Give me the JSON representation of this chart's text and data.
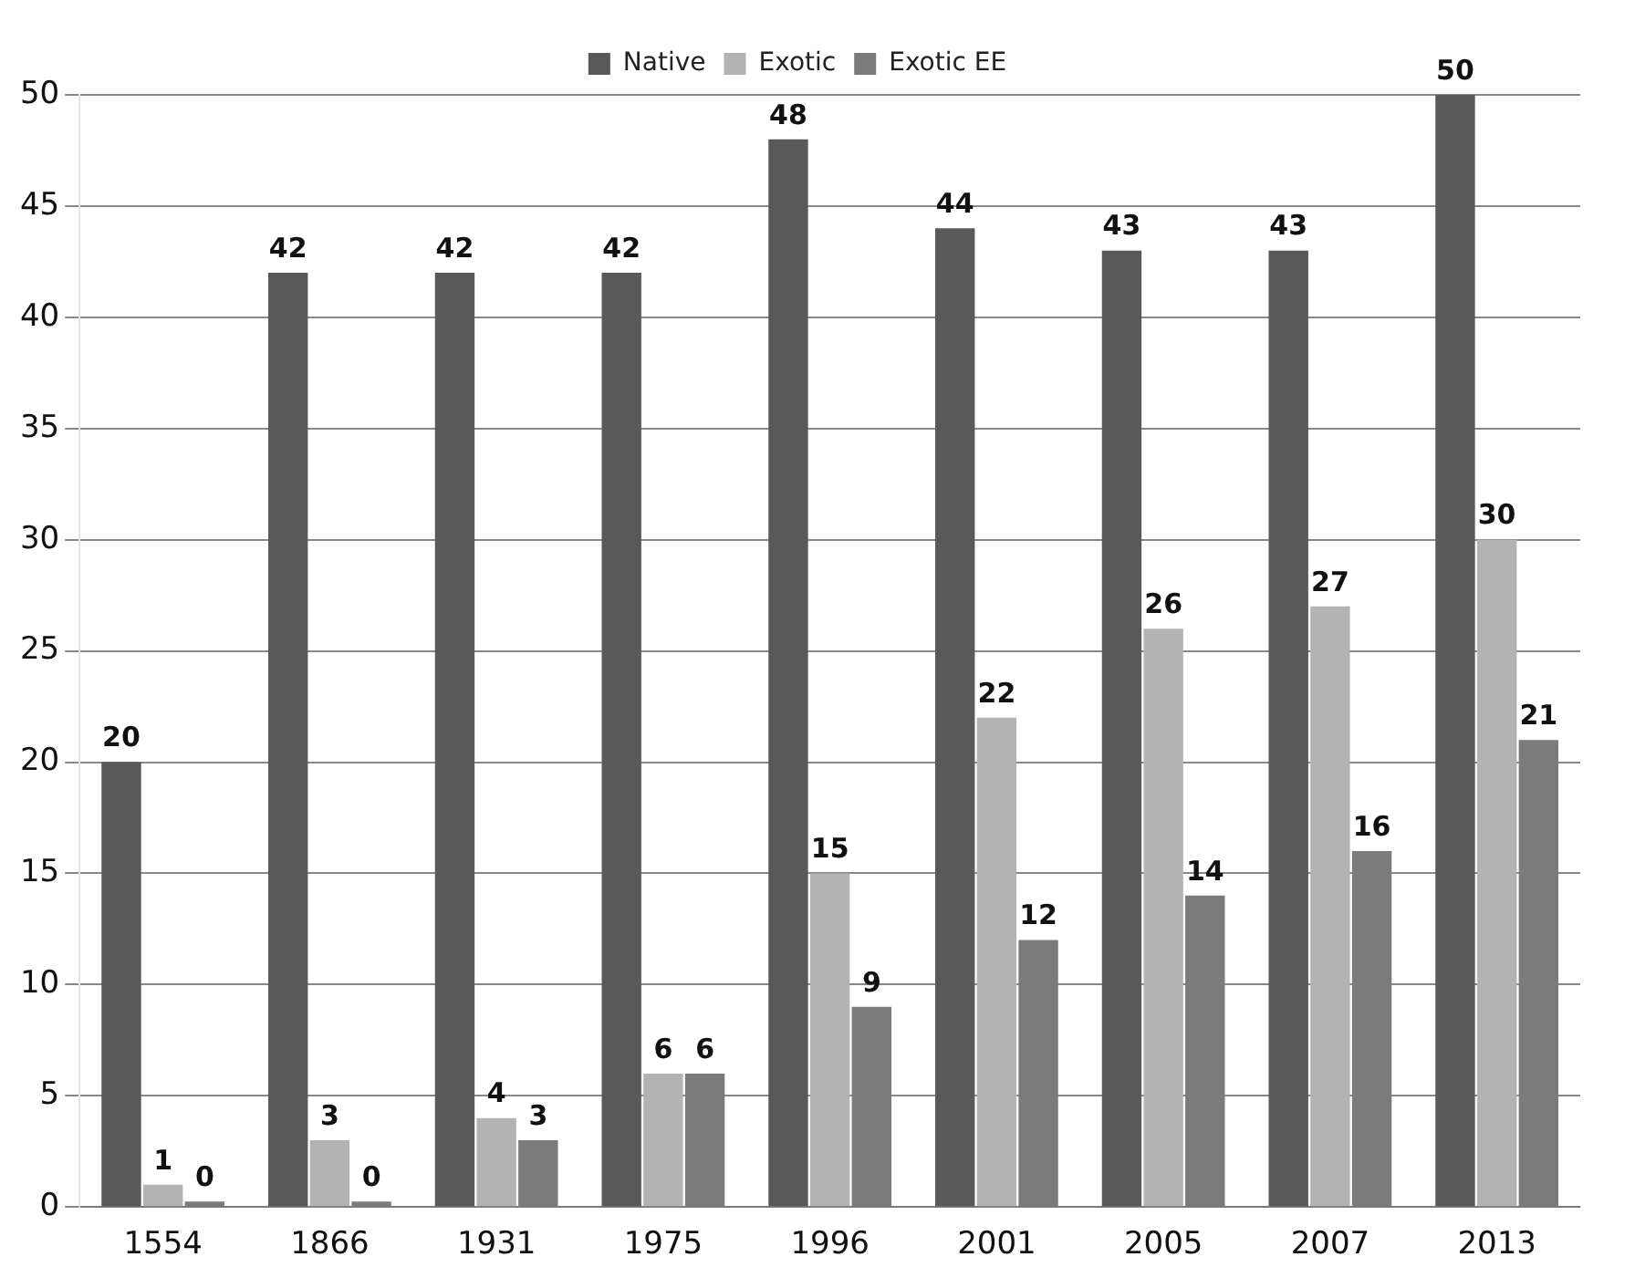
{
  "chart_data": {
    "type": "bar",
    "categories": [
      "1554",
      "1866",
      "1931",
      "1975",
      "1996",
      "2001",
      "2005",
      "2007",
      "2013"
    ],
    "series": [
      {
        "name": "Native",
        "color": "#595959",
        "values": [
          20,
          42,
          42,
          42,
          48,
          44,
          43,
          43,
          50
        ]
      },
      {
        "name": "Exotic",
        "color": "#b3b3b3",
        "values": [
          1,
          3,
          4,
          6,
          15,
          22,
          26,
          27,
          30
        ]
      },
      {
        "name": "Exotic EE",
        "color": "#7b7b7b",
        "values": [
          0,
          0,
          3,
          6,
          9,
          12,
          14,
          16,
          21
        ]
      }
    ],
    "ylim": [
      0,
      50
    ],
    "yticks": [
      0,
      5,
      10,
      15,
      20,
      25,
      30,
      35,
      40,
      45,
      50
    ],
    "grid": "y",
    "legend": "top",
    "data_labels": true
  }
}
